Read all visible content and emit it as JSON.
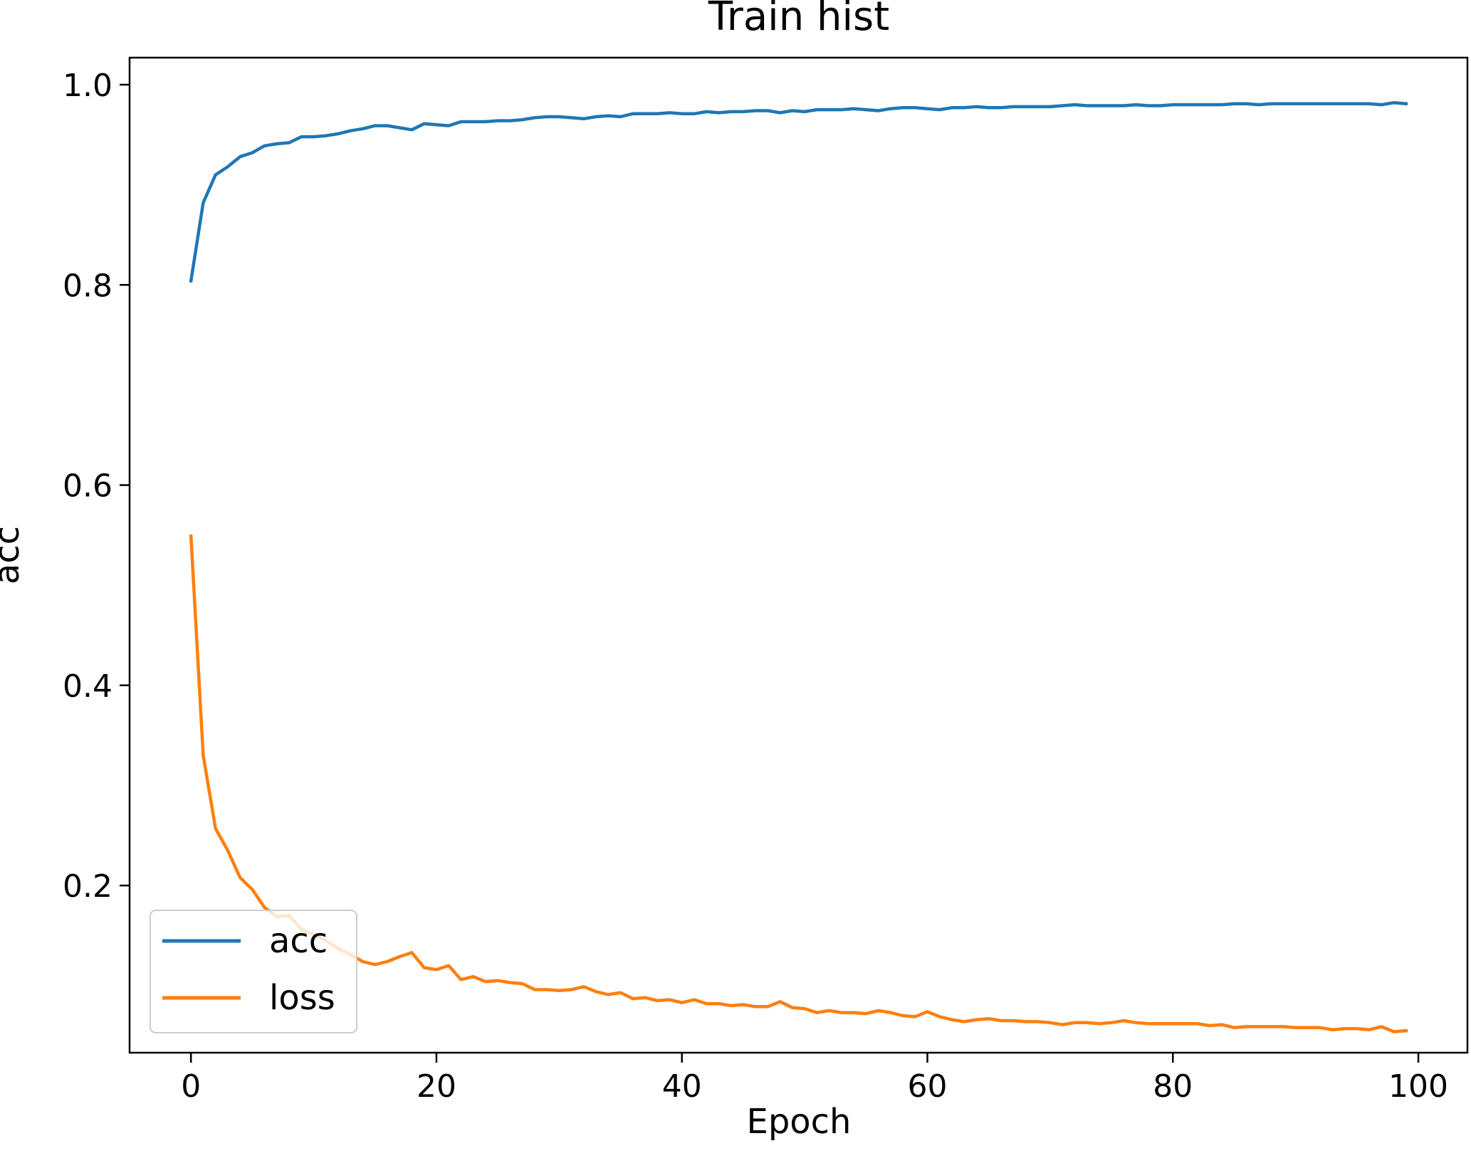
{
  "chart_data": {
    "type": "line",
    "title": "Train hist",
    "xlabel": "Epoch",
    "ylabel": "acc",
    "xlim": [
      -5,
      104
    ],
    "ylim": [
      0.033,
      1.027
    ],
    "xticks": [
      0,
      20,
      40,
      60,
      80,
      100
    ],
    "yticks": [
      0.2,
      0.4,
      0.6,
      0.8,
      1.0
    ],
    "xtick_labels": [
      "0",
      "20",
      "40",
      "60",
      "80",
      "100"
    ],
    "ytick_labels": [
      "0.2",
      "0.4",
      "0.6",
      "0.8",
      "1.0"
    ],
    "grid": false,
    "legend": "lower-left",
    "x": [
      0,
      1,
      2,
      3,
      4,
      5,
      6,
      7,
      8,
      9,
      10,
      11,
      12,
      13,
      14,
      15,
      16,
      17,
      18,
      19,
      20,
      21,
      22,
      23,
      24,
      25,
      26,
      27,
      28,
      29,
      30,
      31,
      32,
      33,
      34,
      35,
      36,
      37,
      38,
      39,
      40,
      41,
      42,
      43,
      44,
      45,
      46,
      47,
      48,
      49,
      50,
      51,
      52,
      53,
      54,
      55,
      56,
      57,
      58,
      59,
      60,
      61,
      62,
      63,
      64,
      65,
      66,
      67,
      68,
      69,
      70,
      71,
      72,
      73,
      74,
      75,
      76,
      77,
      78,
      79,
      80,
      81,
      82,
      83,
      84,
      85,
      86,
      87,
      88,
      89,
      90,
      91,
      92,
      93,
      94,
      95,
      96,
      97,
      98,
      99
    ],
    "series": [
      {
        "name": "acc",
        "color": "#1f77b4",
        "values": [
          0.804,
          0.882,
          0.91,
          0.918,
          0.928,
          0.932,
          0.939,
          0.941,
          0.942,
          0.948,
          0.948,
          0.949,
          0.951,
          0.954,
          0.956,
          0.959,
          0.959,
          0.957,
          0.955,
          0.961,
          0.96,
          0.959,
          0.963,
          0.963,
          0.963,
          0.964,
          0.964,
          0.965,
          0.967,
          0.968,
          0.968,
          0.967,
          0.966,
          0.968,
          0.969,
          0.968,
          0.971,
          0.971,
          0.971,
          0.972,
          0.971,
          0.971,
          0.973,
          0.972,
          0.973,
          0.973,
          0.974,
          0.974,
          0.972,
          0.974,
          0.973,
          0.975,
          0.975,
          0.975,
          0.976,
          0.975,
          0.974,
          0.976,
          0.977,
          0.977,
          0.976,
          0.975,
          0.977,
          0.977,
          0.978,
          0.977,
          0.977,
          0.978,
          0.978,
          0.978,
          0.978,
          0.979,
          0.98,
          0.979,
          0.979,
          0.979,
          0.979,
          0.98,
          0.979,
          0.979,
          0.98,
          0.98,
          0.98,
          0.98,
          0.98,
          0.981,
          0.981,
          0.98,
          0.981,
          0.981,
          0.981,
          0.981,
          0.981,
          0.981,
          0.981,
          0.981,
          0.981,
          0.98,
          0.982,
          0.981
        ]
      },
      {
        "name": "loss",
        "color": "#ff7f0e",
        "values": [
          0.549,
          0.33,
          0.257,
          0.235,
          0.208,
          0.196,
          0.178,
          0.169,
          0.17,
          0.156,
          0.151,
          0.145,
          0.137,
          0.131,
          0.124,
          0.121,
          0.124,
          0.129,
          0.133,
          0.118,
          0.116,
          0.12,
          0.106,
          0.109,
          0.104,
          0.105,
          0.103,
          0.102,
          0.096,
          0.096,
          0.095,
          0.096,
          0.099,
          0.094,
          0.091,
          0.093,
          0.087,
          0.088,
          0.085,
          0.086,
          0.083,
          0.086,
          0.082,
          0.082,
          0.08,
          0.081,
          0.079,
          0.079,
          0.084,
          0.078,
          0.077,
          0.073,
          0.075,
          0.073,
          0.073,
          0.072,
          0.075,
          0.073,
          0.07,
          0.069,
          0.074,
          0.069,
          0.066,
          0.064,
          0.066,
          0.067,
          0.065,
          0.065,
          0.064,
          0.064,
          0.063,
          0.061,
          0.063,
          0.063,
          0.062,
          0.063,
          0.065,
          0.063,
          0.062,
          0.062,
          0.062,
          0.062,
          0.062,
          0.06,
          0.061,
          0.058,
          0.059,
          0.059,
          0.059,
          0.059,
          0.058,
          0.058,
          0.058,
          0.056,
          0.057,
          0.057,
          0.056,
          0.059,
          0.054,
          0.055
        ]
      }
    ]
  }
}
